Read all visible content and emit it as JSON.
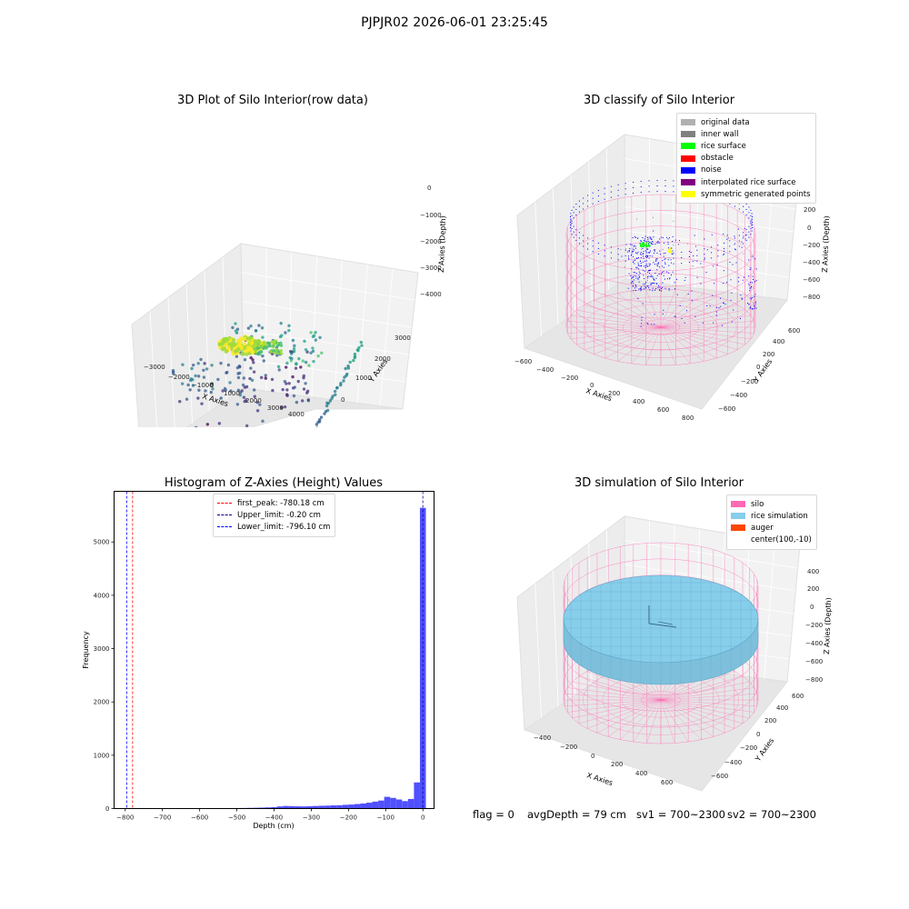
{
  "suptitle": "PJPJR02 2026-06-01 23:25:45",
  "footer": {
    "flag": "flag = 0",
    "avg_depth": "avgDepth = 79 cm",
    "sv1": "sv1 = 700~2300",
    "sv2": "sv2 = 700~2300"
  },
  "colors": {
    "histogram_bar": "#5050ff",
    "first_peak": "#ff0000",
    "upper_limit": "#00008b",
    "lower_limit": "#0000ff",
    "silo": "#ff69b4",
    "rice": "#87ceeb",
    "auger": "#ff4500"
  },
  "panel_raw": {
    "title": "3D Plot of Silo Interior(row data)",
    "xlabel": "X Axies",
    "ylabel": "Y Axies",
    "zlabel": "Z Axies (Depth)",
    "x_ticks": [
      "−3000",
      "−2000",
      "−1000",
      "0",
      "1000",
      "2000",
      "3000",
      "4000"
    ],
    "y_ticks": [
      "0",
      "1000",
      "2000",
      "3000"
    ],
    "z_ticks": [
      "0",
      "−1000",
      "−2000",
      "−3000",
      "−4000"
    ],
    "colormap": "viridis"
  },
  "panel_classify": {
    "title": "3D classify of Silo Interior",
    "xlabel": "X Axies",
    "ylabel": "Y Axies",
    "zlabel": "Z Axies (Depth)",
    "x_ticks": [
      "−600",
      "−400",
      "−200",
      "0",
      "200",
      "400",
      "600",
      "800"
    ],
    "y_ticks": [
      "−600",
      "−400",
      "−200",
      "0",
      "200",
      "400",
      "600"
    ],
    "z_ticks": [
      "200",
      "0",
      "−200",
      "−400",
      "−600",
      "−800"
    ],
    "legend": [
      {
        "label": "original data",
        "color": "#b0b0b0"
      },
      {
        "label": "inner wall",
        "color": "#808080"
      },
      {
        "label": "rice surface",
        "color": "#00ff00"
      },
      {
        "label": "obstacle",
        "color": "#ff0000"
      },
      {
        "label": "noise",
        "color": "#0000ff"
      },
      {
        "label": "interpolated rice surface",
        "color": "#800080"
      },
      {
        "label": "symmetric generated points",
        "color": "#ffff00"
      }
    ]
  },
  "panel_sim": {
    "title": "3D simulation of Silo Interior",
    "xlabel": "X Axies",
    "ylabel": "Y Axies",
    "zlabel": "Z Axies (Depth)",
    "x_ticks": [
      "−400",
      "−200",
      "0",
      "200",
      "400",
      "600"
    ],
    "y_ticks": [
      "−600",
      "−400",
      "−200",
      "0",
      "200",
      "400",
      "600"
    ],
    "z_ticks": [
      "400",
      "200",
      "0",
      "−200",
      "−400",
      "−600",
      "−800"
    ],
    "legend": [
      {
        "label": "silo",
        "color": "#ff69b4"
      },
      {
        "label": "rice simulation",
        "color": "#87ceeb"
      },
      {
        "label": "auger",
        "color": "#ff4500"
      },
      {
        "label": "center(100,-10)",
        "color": ""
      }
    ]
  },
  "chart_data": {
    "type": "bar",
    "title": "Histogram of Z-Axies (Height) Values",
    "xlabel": "Depth (cm)",
    "ylabel": "Frequency",
    "xlim": [
      -830,
      30
    ],
    "ylim": [
      0,
      5950
    ],
    "x_ticks": [
      -800,
      -700,
      -600,
      -500,
      -400,
      -300,
      -200,
      -100,
      0
    ],
    "x_tick_labels": [
      "−800",
      "−700",
      "−600",
      "−500",
      "−400",
      "−300",
      "−200",
      "−100",
      "0"
    ],
    "y_ticks": [
      0,
      1000,
      2000,
      3000,
      4000,
      5000
    ],
    "bin_width": 16,
    "bins": [
      {
        "x0": -648,
        "count": 3
      },
      {
        "x0": -632,
        "count": 3
      },
      {
        "x0": -616,
        "count": 4
      },
      {
        "x0": -600,
        "count": 3
      },
      {
        "x0": -584,
        "count": 3
      },
      {
        "x0": -568,
        "count": 5
      },
      {
        "x0": -552,
        "count": 6
      },
      {
        "x0": -536,
        "count": 7
      },
      {
        "x0": -520,
        "count": 8
      },
      {
        "x0": -504,
        "count": 10
      },
      {
        "x0": -488,
        "count": 11
      },
      {
        "x0": -472,
        "count": 13
      },
      {
        "x0": -456,
        "count": 15
      },
      {
        "x0": -440,
        "count": 18
      },
      {
        "x0": -424,
        "count": 22
      },
      {
        "x0": -408,
        "count": 27
      },
      {
        "x0": -392,
        "count": 40
      },
      {
        "x0": -376,
        "count": 48
      },
      {
        "x0": -360,
        "count": 45
      },
      {
        "x0": -344,
        "count": 42
      },
      {
        "x0": -328,
        "count": 40
      },
      {
        "x0": -312,
        "count": 43
      },
      {
        "x0": -296,
        "count": 48
      },
      {
        "x0": -280,
        "count": 52
      },
      {
        "x0": -264,
        "count": 55
      },
      {
        "x0": -248,
        "count": 60
      },
      {
        "x0": -232,
        "count": 62
      },
      {
        "x0": -216,
        "count": 70
      },
      {
        "x0": -200,
        "count": 75
      },
      {
        "x0": -184,
        "count": 85
      },
      {
        "x0": -168,
        "count": 95
      },
      {
        "x0": -152,
        "count": 110
      },
      {
        "x0": -136,
        "count": 130
      },
      {
        "x0": -120,
        "count": 150
      },
      {
        "x0": -104,
        "count": 220
      },
      {
        "x0": -88,
        "count": 200
      },
      {
        "x0": -72,
        "count": 170
      },
      {
        "x0": -56,
        "count": 140
      },
      {
        "x0": -40,
        "count": 180
      },
      {
        "x0": -24,
        "count": 490
      },
      {
        "x0": -8,
        "count": 5640
      }
    ],
    "vlines": [
      {
        "label": "first_peak: -780.18 cm",
        "x": -780.18,
        "color": "#ff0000"
      },
      {
        "label": "Upper_limit: -0.20 cm",
        "x": -0.2,
        "color": "#00008b"
      },
      {
        "label": "Lower_limit: -796.10 cm",
        "x": -796.1,
        "color": "#0000ff"
      }
    ],
    "legend_position": "top-center"
  }
}
